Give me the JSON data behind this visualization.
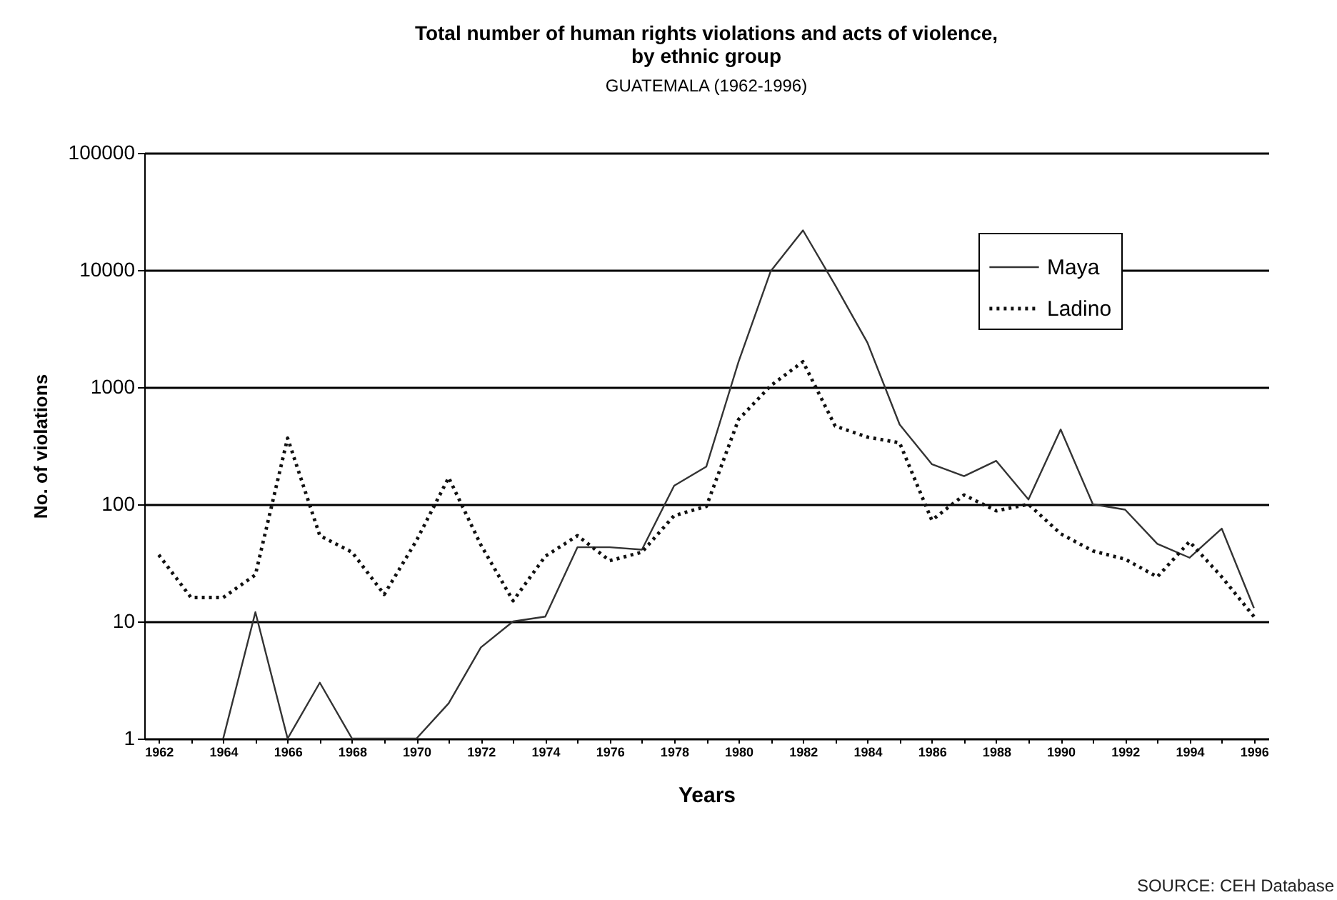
{
  "chart_data": {
    "type": "line",
    "title": "Total number of human rights violations and acts of violence, by ethnic group",
    "subtitle": "GUATEMALA (1962-1996)",
    "xlabel": "Years",
    "ylabel": "No. of violations",
    "categories": [
      "1962",
      null,
      "1964",
      null,
      "1966",
      null,
      "1968",
      null,
      "1970",
      null,
      "1972",
      null,
      "1974",
      null,
      "1976",
      null,
      "1978",
      null,
      "1980",
      null,
      "1982",
      null,
      "1984",
      null,
      "1986",
      null,
      "1988",
      null,
      "1990",
      null,
      "1992",
      null,
      "1994",
      null,
      "1996"
    ],
    "series": [
      {
        "name": "Maya",
        "color": "#333333",
        "line_style": "solid",
        "values": [
          null,
          null,
          1,
          12,
          1,
          3,
          1,
          1,
          1,
          2,
          6,
          10,
          11,
          43,
          43,
          41,
          144,
          210,
          1650,
          9800,
          21800,
          7400,
          2400,
          480,
          220,
          174,
          235,
          110,
          435,
          100,
          90,
          46,
          35,
          62,
          13
        ]
      },
      {
        "name": "Ladino",
        "color": "#111111",
        "line_style": "dotted",
        "values": [
          37,
          16,
          16,
          25,
          367,
          54,
          39,
          17,
          49,
          169,
          45,
          15,
          36,
          54,
          33,
          39,
          80,
          96,
          530,
          1030,
          1650,
          465,
          375,
          335,
          73,
          120,
          88,
          100,
          56,
          40,
          34,
          24,
          48,
          24,
          11
        ]
      }
    ],
    "log": "y",
    "ylim": [
      1,
      100000
    ],
    "yticks": [
      1,
      10,
      100,
      1000,
      10000,
      100000
    ],
    "grid": "y",
    "legend": "top right",
    "marker": "none",
    "annotations": [
      "SOURCE: CEH Database"
    ]
  }
}
